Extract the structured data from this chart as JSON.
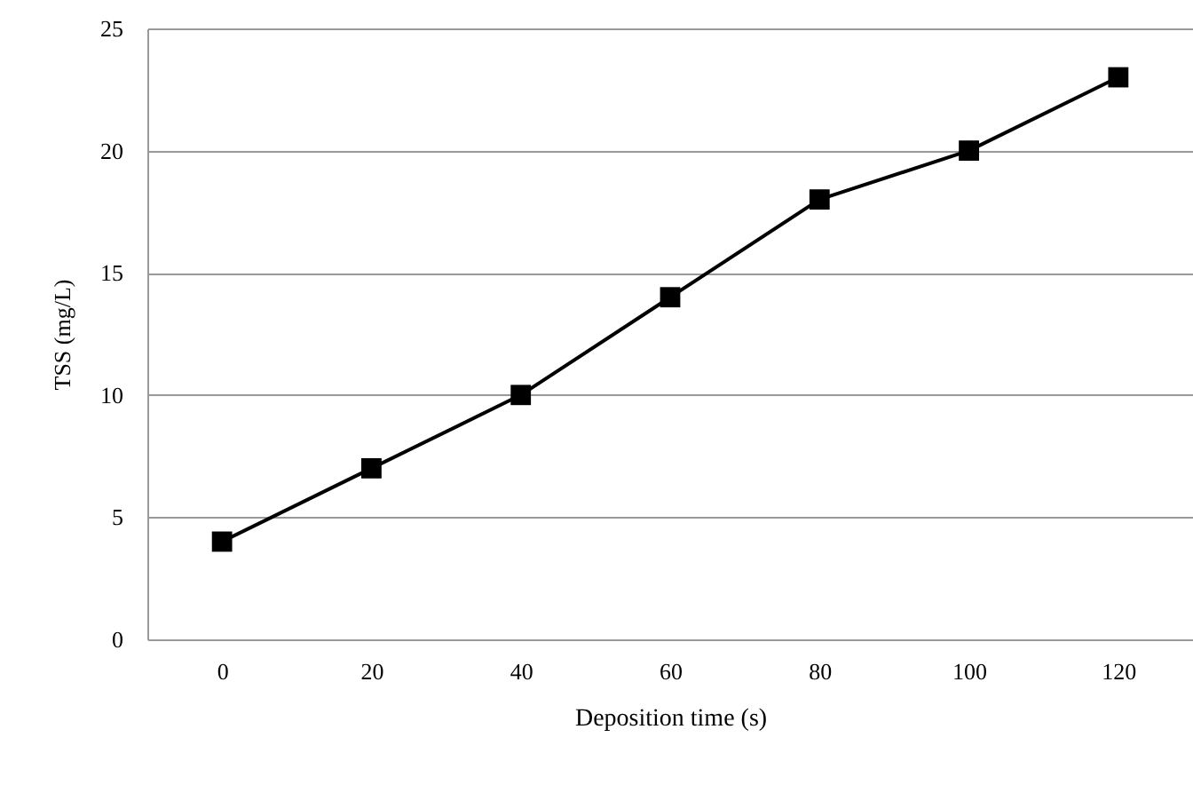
{
  "chart_data": {
    "type": "line",
    "xlabel": "Deposition time (s)",
    "ylabel": "TSS (mg/L)",
    "categories": [
      "0",
      "20",
      "40",
      "60",
      "80",
      "100",
      "120"
    ],
    "series": [
      {
        "color": "#000000",
        "values": [
          4,
          7,
          10,
          14,
          18,
          20,
          23
        ]
      }
    ],
    "ylim": [
      0,
      25
    ],
    "yticks": [
      0,
      5,
      10,
      15,
      20,
      25
    ],
    "grid": "y",
    "marker": "square",
    "line_style": "solid"
  }
}
